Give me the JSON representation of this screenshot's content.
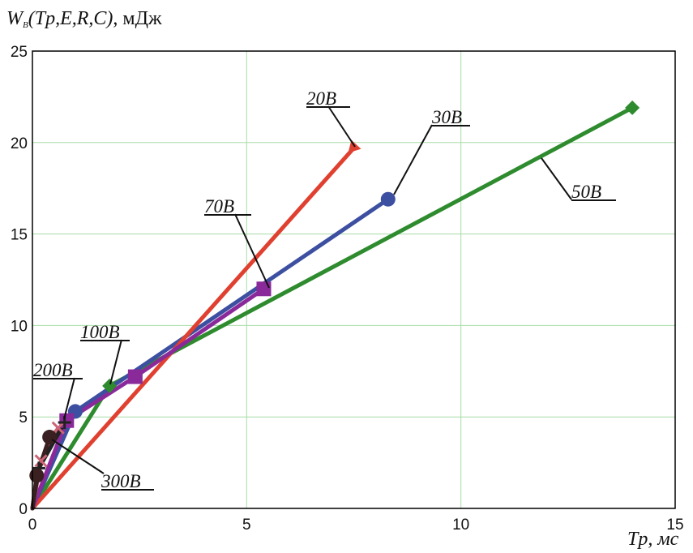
{
  "chart_data": {
    "type": "line",
    "ylabel": {
      "symbol": "W",
      "subscript": "B",
      "args": "(Tp,E,R,C)",
      "unit": ", мДж"
    },
    "xlabel": "Tp, мс",
    "xlim": [
      0,
      15
    ],
    "ylim": [
      0,
      25
    ],
    "xticks": [
      "0",
      "5",
      "10",
      "15"
    ],
    "yticks": [
      "0",
      "5",
      "10",
      "15",
      "20",
      "25"
    ],
    "grid": true,
    "series": [
      {
        "name": "50B",
        "color": "#2e8b2e",
        "marker": "diamond",
        "x": [
          0,
          1.8,
          14.0
        ],
        "y": [
          0,
          6.7,
          21.9
        ]
      },
      {
        "name": "30B",
        "color": "#3c4fa0",
        "marker": "circle",
        "x": [
          0,
          1.0,
          8.3
        ],
        "y": [
          0,
          5.3,
          16.9
        ]
      },
      {
        "name": "20B",
        "color": "#e04030",
        "marker": "triangle",
        "x": [
          0,
          7.5
        ],
        "y": [
          0,
          19.7
        ]
      },
      {
        "name": "70B",
        "color": "#8a2a9a",
        "marker": "square",
        "x": [
          0,
          0.8,
          2.4,
          5.4
        ],
        "y": [
          0,
          4.8,
          7.2,
          12.0
        ]
      },
      {
        "name": "100B",
        "color": "#cc6677",
        "marker": "x",
        "x": [
          0,
          0.2,
          0.6
        ],
        "y": [
          0,
          2.6,
          4.4
        ]
      },
      {
        "name": "200B",
        "color": "#222222",
        "marker": "plus",
        "x": [
          0,
          0.15,
          0.75
        ],
        "y": [
          0,
          2.2,
          4.7
        ]
      },
      {
        "name": "300B",
        "color": "#3a2020",
        "marker": "circle",
        "x": [
          0,
          0.1,
          0.4
        ],
        "y": [
          0,
          1.8,
          3.9
        ]
      }
    ],
    "annotations": [
      "20B",
      "30B",
      "50B",
      "70B",
      "100B",
      "200B",
      "300B"
    ]
  }
}
